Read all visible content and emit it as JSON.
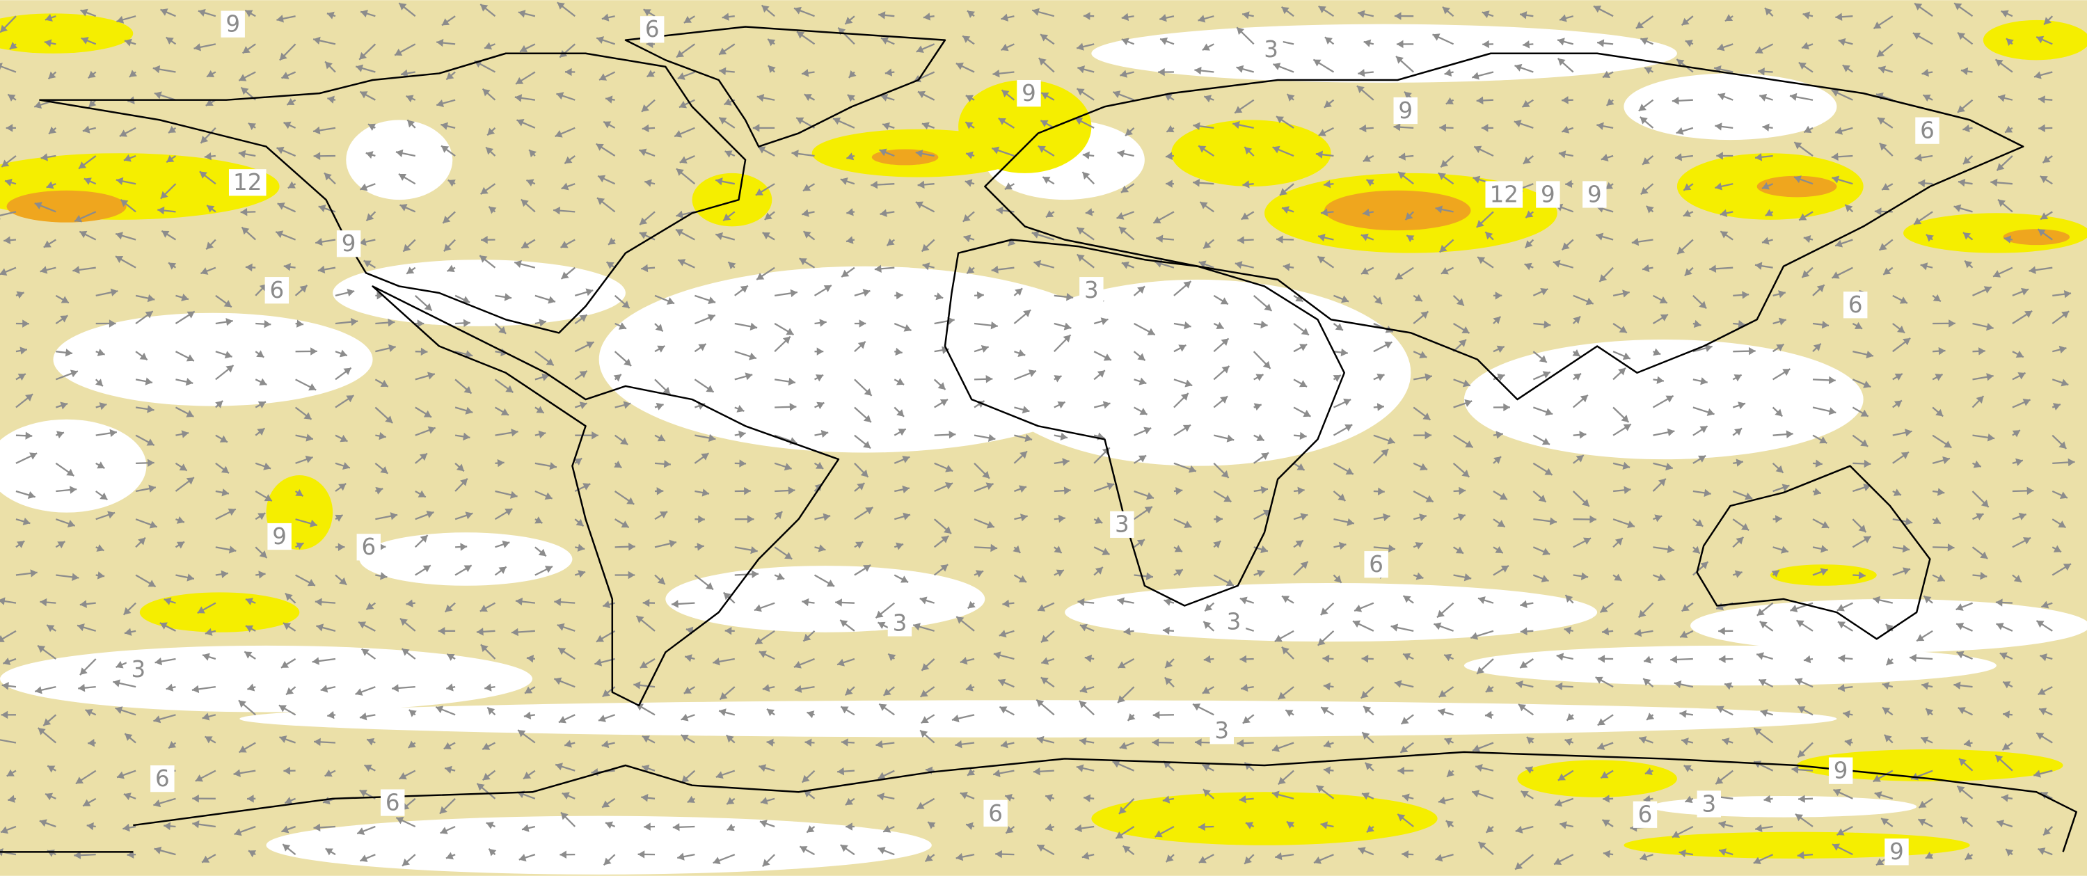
{
  "contour_labels": [
    "9",
    "6",
    "3",
    "9",
    "9",
    "6",
    "12",
    "12",
    "9",
    "9",
    "9",
    "6",
    "3",
    "6",
    "9",
    "6",
    "3",
    "6",
    "3",
    "3",
    "3",
    "3",
    "6",
    "9",
    "6",
    "6",
    "3",
    "6",
    "9"
  ]
}
